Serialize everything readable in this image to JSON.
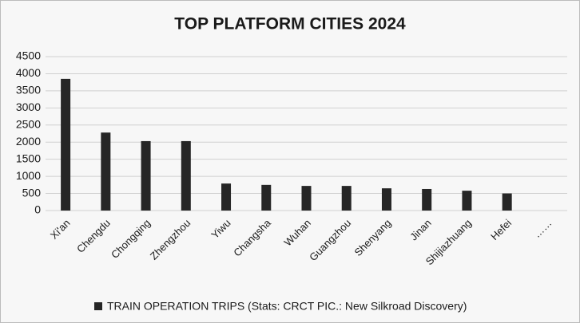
{
  "chart_data": {
    "type": "bar",
    "title": "TOP PLATFORM CITIES 2024",
    "categories": [
      "Xi'an",
      "Chengdu",
      "Chongqing",
      "Zhengzhou",
      "Yiwu",
      "Changsha",
      "Wuhan",
      "Guangzhou",
      "Shenyang",
      "Jinan",
      "Shijiazhuang",
      "Hefei",
      "……"
    ],
    "series": [
      {
        "name": "TRAIN OPERATION TRIPS (Stats: CRCT  PIC.: New Silkroad Discovery)",
        "color": "#262626",
        "values": [
          3850,
          2280,
          2030,
          2030,
          790,
          750,
          720,
          720,
          650,
          630,
          580,
          500,
          null
        ]
      }
    ],
    "ylim": [
      0,
      4500
    ],
    "yticks": [
      0,
      500,
      1000,
      1500,
      2000,
      2500,
      3000,
      3500,
      4000,
      4500
    ],
    "grid": true,
    "legend": "bottom"
  }
}
